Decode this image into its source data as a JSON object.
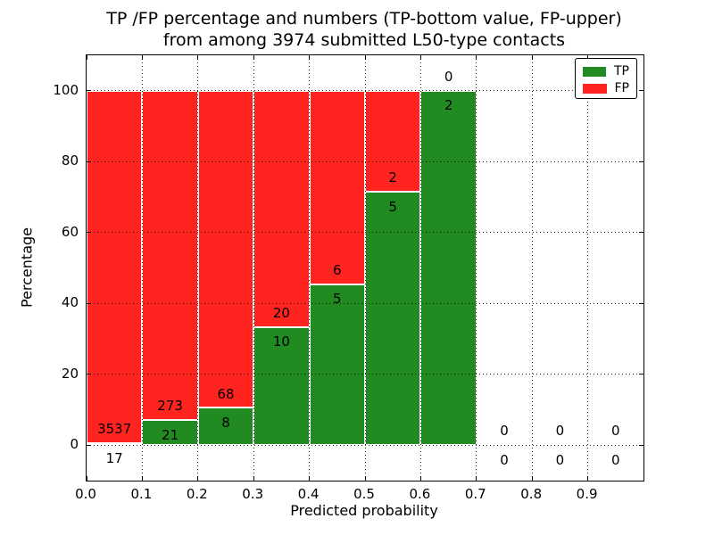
{
  "chart_data": {
    "type": "bar",
    "stacked": true,
    "title": "TP /FP percentage and numbers (TP-bottom value, FP-upper)",
    "subtitle": "from among 3974 submitted L50-type contacts",
    "xlabel": "Predicted probability",
    "ylabel": "Percentage",
    "xlim": [
      0.0,
      1.0
    ],
    "ylim": [
      -10,
      110
    ],
    "bin_width": 0.1,
    "x_tick_values": [
      0.0,
      0.1,
      0.2,
      0.3,
      0.4,
      0.5,
      0.6,
      0.7,
      0.8,
      0.9
    ],
    "x_tick_labels": [
      "0.0",
      "0.1",
      "0.2",
      "0.3",
      "0.4",
      "0.5",
      "0.6",
      "0.7",
      "0.8",
      "0.9"
    ],
    "y_tick_values": [
      0,
      20,
      40,
      60,
      80,
      100
    ],
    "y_tick_labels": [
      "0",
      "20",
      "40",
      "60",
      "80",
      "100"
    ],
    "grid": true,
    "grid_style": "dotted",
    "legend_position": "upper right",
    "series": [
      {
        "name": "TP",
        "color": "#218a21"
      },
      {
        "name": "FP",
        "color": "#ff2420"
      }
    ],
    "bins": [
      {
        "x_start": 0.0,
        "x_end": 0.1,
        "tp": 17,
        "fp": 3537
      },
      {
        "x_start": 0.1,
        "x_end": 0.2,
        "tp": 21,
        "fp": 273
      },
      {
        "x_start": 0.2,
        "x_end": 0.3,
        "tp": 8,
        "fp": 68
      },
      {
        "x_start": 0.3,
        "x_end": 0.4,
        "tp": 10,
        "fp": 20
      },
      {
        "x_start": 0.4,
        "x_end": 0.5,
        "tp": 5,
        "fp": 6
      },
      {
        "x_start": 0.5,
        "x_end": 0.6,
        "tp": 5,
        "fp": 2
      },
      {
        "x_start": 0.6,
        "x_end": 0.7,
        "tp": 2,
        "fp": 0
      },
      {
        "x_start": 0.7,
        "x_end": 0.8,
        "tp": 0,
        "fp": 0
      },
      {
        "x_start": 0.8,
        "x_end": 0.9,
        "tp": 0,
        "fp": 0
      },
      {
        "x_start": 0.9,
        "x_end": 1.0,
        "tp": 0,
        "fp": 0
      }
    ]
  }
}
